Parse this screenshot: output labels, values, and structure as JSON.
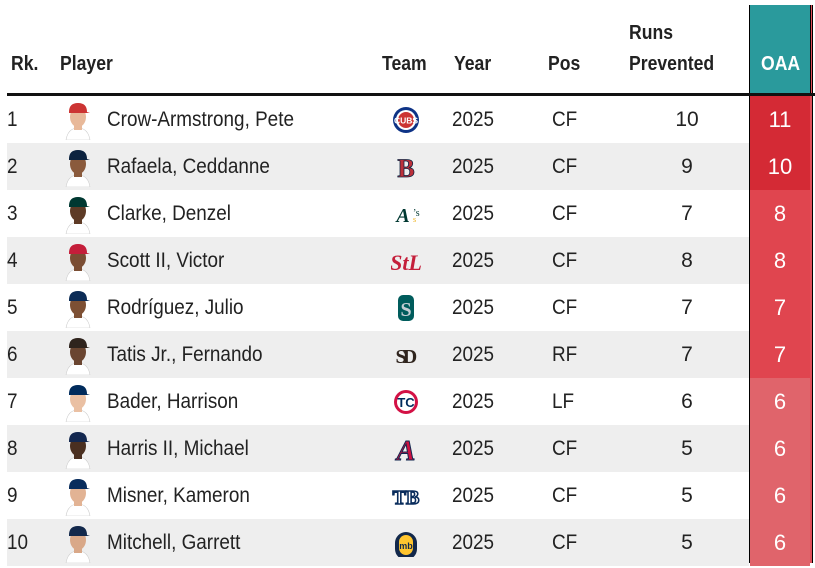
{
  "headers": {
    "rank": "Rk.",
    "player": "Player",
    "team": "Team",
    "year": "Year",
    "pos": "Pos",
    "runs_line1": "Runs",
    "runs_line2": "Prevented",
    "oaa": "OAA"
  },
  "colors": {
    "oaa_header": "#2a9a9c",
    "oaa_high": "#d42a35",
    "oaa_mid": "#e0454f",
    "oaa_low": "#e0646b",
    "row_alt": "#eeeeee"
  },
  "rows": [
    {
      "rank": "1",
      "player": "Crow-Armstrong, Pete",
      "team_logo": "cubs-logo-icon",
      "year": "2025",
      "pos": "CF",
      "runs_prevented": "10",
      "oaa": "11"
    },
    {
      "rank": "2",
      "player": "Rafaela, Ceddanne",
      "team_logo": "red-sox-logo-icon",
      "year": "2025",
      "pos": "CF",
      "runs_prevented": "9",
      "oaa": "10"
    },
    {
      "rank": "3",
      "player": "Clarke, Denzel",
      "team_logo": "athletics-logo-icon",
      "year": "2025",
      "pos": "CF",
      "runs_prevented": "7",
      "oaa": "8"
    },
    {
      "rank": "4",
      "player": "Scott II, Victor",
      "team_logo": "cardinals-logo-icon",
      "year": "2025",
      "pos": "CF",
      "runs_prevented": "8",
      "oaa": "8"
    },
    {
      "rank": "5",
      "player": "Rodríguez, Julio",
      "team_logo": "mariners-logo-icon",
      "year": "2025",
      "pos": "CF",
      "runs_prevented": "7",
      "oaa": "7"
    },
    {
      "rank": "6",
      "player": "Tatis Jr., Fernando",
      "team_logo": "padres-logo-icon",
      "year": "2025",
      "pos": "RF",
      "runs_prevented": "7",
      "oaa": "7"
    },
    {
      "rank": "7",
      "player": "Bader, Harrison",
      "team_logo": "twins-logo-icon",
      "year": "2025",
      "pos": "LF",
      "runs_prevented": "6",
      "oaa": "6"
    },
    {
      "rank": "8",
      "player": "Harris II, Michael",
      "team_logo": "braves-logo-icon",
      "year": "2025",
      "pos": "CF",
      "runs_prevented": "5",
      "oaa": "6"
    },
    {
      "rank": "9",
      "player": "Misner, Kameron",
      "team_logo": "rays-logo-icon",
      "year": "2025",
      "pos": "CF",
      "runs_prevented": "5",
      "oaa": "6"
    },
    {
      "rank": "10",
      "player": "Mitchell, Garrett",
      "team_logo": "brewers-logo-icon",
      "year": "2025",
      "pos": "CF",
      "runs_prevented": "5",
      "oaa": "6"
    }
  ]
}
